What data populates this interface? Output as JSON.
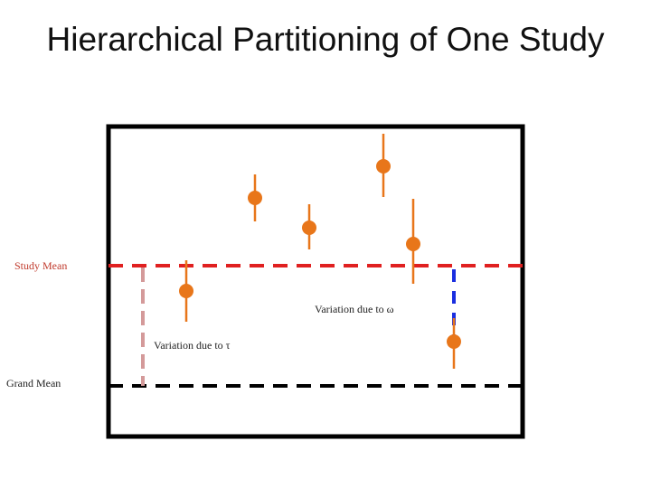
{
  "slide": {
    "title": "Hierarchical Partitioning of One Study"
  },
  "labels": {
    "study_mean": "Study Mean",
    "grand_mean": "Grand Mean",
    "variation_tau": "Variation due to τ",
    "variation_omega": "Variation due to ω"
  },
  "colors": {
    "study_mean_line": "#e02020",
    "grand_mean_line": "#000000",
    "tau_bracket": "#d49a9a",
    "omega_bracket": "#1a2ee0",
    "point_fill": "#e8761a",
    "whisker": "#e8761a",
    "frame": "#000000"
  }
}
